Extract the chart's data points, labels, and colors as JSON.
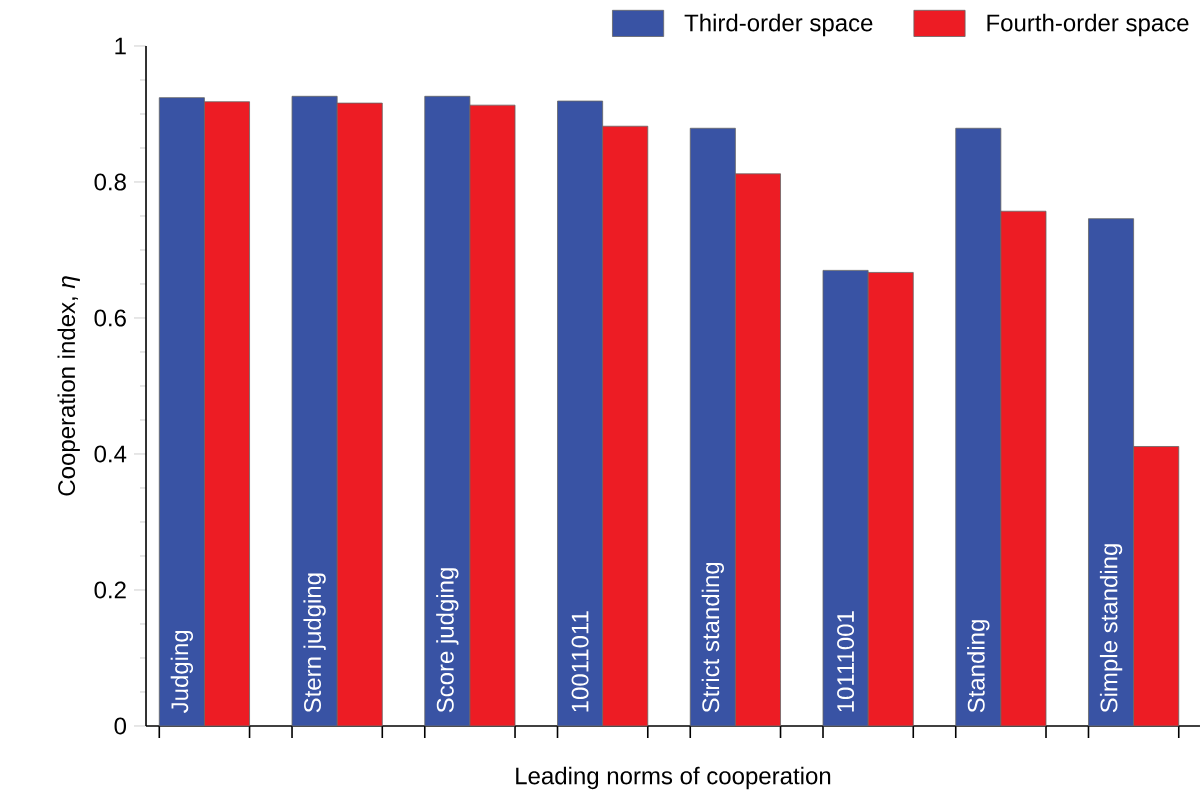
{
  "chart_data": {
    "type": "bar",
    "xlabel": "Leading norms of cooperation",
    "ylabel": "Cooperation index, *η*",
    "categories": [
      "Judging",
      "Stern judging",
      "Score judging",
      "10011011",
      "Strict standing",
      "10111001",
      "Standing",
      "Simple standing"
    ],
    "series": [
      {
        "name": "Third-order space",
        "color": "#3953a4",
        "values": [
          0.924,
          0.926,
          0.926,
          0.919,
          0.879,
          0.67,
          0.879,
          0.746
        ]
      },
      {
        "name": "Fourth-order space",
        "color": "#ed1c24",
        "values": [
          0.918,
          0.916,
          0.913,
          0.882,
          0.812,
          0.667,
          0.757,
          0.411
        ]
      }
    ],
    "ylim": [
      0,
      1
    ],
    "yticks": [
      0,
      0.2,
      0.4,
      0.6,
      0.8,
      1
    ],
    "legend": "top right"
  }
}
